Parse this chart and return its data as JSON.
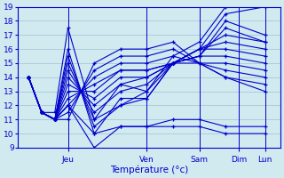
{
  "xlabel": "Température (°c)",
  "xlim": [
    -5,
    115
  ],
  "ylim": [
    9,
    19
  ],
  "yticks": [
    9,
    10,
    11,
    12,
    13,
    14,
    15,
    16,
    17,
    18,
    19
  ],
  "day_positions": [
    18,
    54,
    78,
    96,
    108
  ],
  "day_labels": [
    "Jeu",
    "Ven",
    "Sam",
    "Dim",
    "Lun"
  ],
  "bg_color": "#d0eaf0",
  "grid_color": "#a8c8d8",
  "line_color": "#0000cc",
  "series": [
    [
      14.0,
      11.5,
      11.5,
      17.5,
      11.0,
      13.5,
      13.0,
      15.5,
      16.5,
      19.0,
      19.5
    ],
    [
      14.0,
      11.5,
      11.0,
      16.0,
      10.0,
      12.5,
      12.5,
      15.0,
      16.0,
      18.5,
      19.0
    ],
    [
      14.0,
      11.5,
      11.0,
      15.5,
      10.5,
      12.0,
      12.5,
      15.0,
      15.5,
      18.0,
      17.0
    ],
    [
      14.0,
      11.5,
      11.0,
      15.0,
      11.0,
      12.0,
      13.0,
      15.0,
      15.5,
      17.5,
      16.5
    ],
    [
      14.0,
      11.5,
      11.0,
      14.5,
      11.5,
      13.0,
      13.5,
      15.0,
      16.0,
      17.0,
      16.5
    ],
    [
      14.0,
      11.5,
      11.0,
      14.0,
      12.0,
      13.5,
      14.0,
      15.0,
      16.0,
      16.5,
      16.0
    ],
    [
      14.0,
      11.5,
      11.0,
      13.5,
      12.5,
      14.0,
      14.0,
      15.0,
      16.0,
      16.0,
      15.5
    ],
    [
      14.0,
      11.5,
      11.0,
      13.0,
      13.0,
      14.5,
      14.5,
      15.0,
      15.5,
      15.5,
      15.0
    ],
    [
      14.0,
      11.5,
      11.0,
      12.5,
      13.5,
      14.5,
      14.5,
      15.0,
      15.0,
      15.0,
      14.5
    ],
    [
      14.0,
      11.5,
      11.0,
      12.0,
      14.0,
      15.0,
      15.0,
      15.5,
      15.0,
      14.5,
      14.0
    ],
    [
      14.0,
      11.5,
      11.0,
      11.5,
      14.5,
      15.5,
      15.5,
      16.0,
      15.0,
      14.0,
      13.5
    ],
    [
      14.0,
      11.5,
      11.0,
      11.0,
      15.0,
      16.0,
      16.0,
      16.5,
      15.0,
      14.0,
      13.0
    ],
    [
      14.0,
      11.5,
      11.0,
      12.0,
      9.0,
      10.5,
      10.5,
      11.0,
      11.0,
      10.5,
      10.5
    ],
    [
      14.0,
      11.5,
      11.0,
      12.0,
      10.0,
      10.5,
      10.5,
      10.5,
      10.5,
      10.0,
      10.0
    ]
  ],
  "x_positions": [
    0,
    6,
    12,
    18,
    30,
    42,
    54,
    66,
    78,
    90,
    108
  ]
}
